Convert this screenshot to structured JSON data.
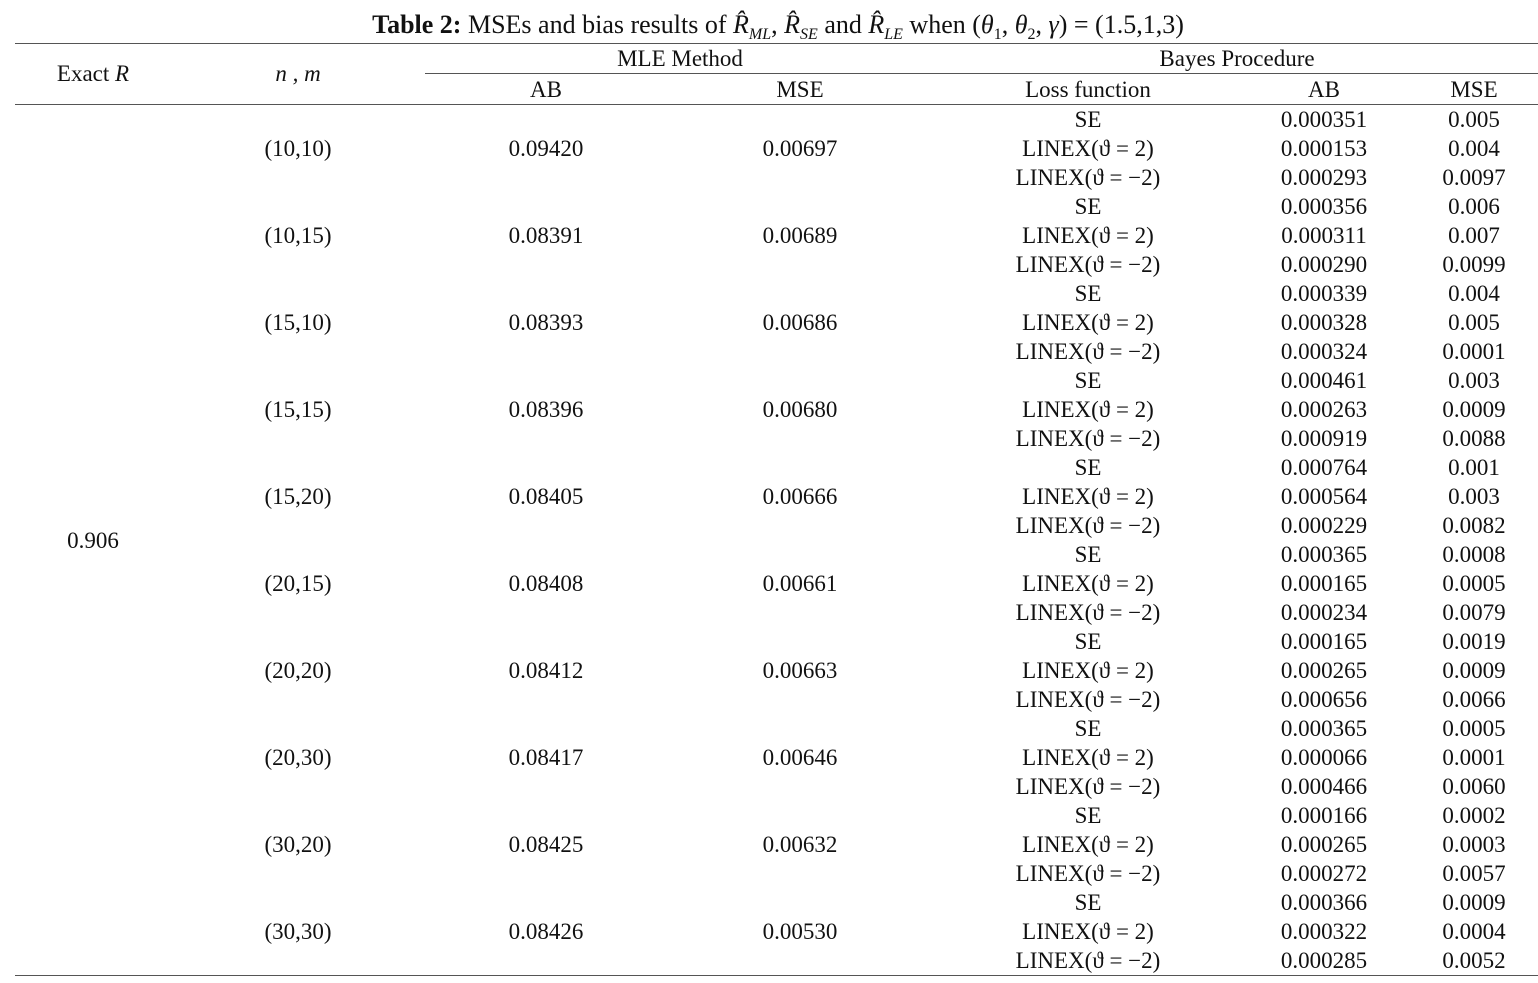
{
  "title": {
    "label": "Table 2:",
    "parts": [
      "MSEs and bias results of ",
      "R̂",
      "ML",
      ", ",
      "R̂",
      "SE",
      " and ",
      "R̂",
      "LE",
      " when (",
      "θ",
      "1",
      ", ",
      "θ",
      "2",
      ", ",
      "γ",
      ") = (1.5,1,3)"
    ]
  },
  "header": {
    "exact_r": [
      "Exact ",
      "R"
    ],
    "n_m": "n , m",
    "mle_method": "MLE Method",
    "bayes_procedure": "Bayes Procedure",
    "mle_ab": "AB",
    "mle_mse": "MSE",
    "loss_function": "Loss function",
    "bayes_ab": "AB",
    "bayes_mse": "MSE"
  },
  "table": {
    "exact_r": "0.906",
    "rows": [
      {
        "n_m": "(10,10)",
        "ab": "0.09420",
        "mse": "0.00697",
        "bayes": [
          [
            "SE",
            "0.000351",
            "0.005"
          ],
          [
            "LINEX(ϑ = 2)",
            "0.000153",
            "0.004"
          ],
          [
            "LINEX(ϑ = −2)",
            "0.000293",
            "0.0097"
          ]
        ]
      },
      {
        "n_m": "(10,15)",
        "ab": "0.08391",
        "mse": "0.00689",
        "bayes": [
          [
            "SE",
            "0.000356",
            "0.006"
          ],
          [
            "LINEX(ϑ = 2)",
            "0.000311",
            "0.007"
          ],
          [
            "LINEX(ϑ = −2)",
            "0.000290",
            "0.0099"
          ]
        ]
      },
      {
        "n_m": "(15,10)",
        "ab": "0.08393",
        "mse": "0.00686",
        "bayes": [
          [
            "SE",
            "0.000339",
            "0.004"
          ],
          [
            "LINEX(ϑ = 2)",
            "0.000328",
            "0.005"
          ],
          [
            "LINEX(ϑ = −2)",
            "0.000324",
            "0.0001"
          ]
        ]
      },
      {
        "n_m": "(15,15)",
        "ab": "0.08396",
        "mse": "0.00680",
        "bayes": [
          [
            "SE",
            "0.000461",
            "0.003"
          ],
          [
            "LINEX(ϑ = 2)",
            "0.000263",
            "0.0009"
          ],
          [
            "LINEX(ϑ = −2)",
            "0.000919",
            "0.0088"
          ]
        ]
      },
      {
        "n_m": "(15,20)",
        "ab": "0.08405",
        "mse": "0.00666",
        "bayes": [
          [
            "SE",
            "0.000764",
            "0.001"
          ],
          [
            "LINEX(ϑ = 2)",
            "0.000564",
            "0.003"
          ],
          [
            "LINEX(ϑ = −2)",
            "0.000229",
            "0.0082"
          ]
        ]
      },
      {
        "n_m": "(20,15)",
        "ab": "0.08408",
        "mse": "0.00661",
        "bayes": [
          [
            "SE",
            "0.000365",
            "0.0008"
          ],
          [
            "LINEX(ϑ = 2)",
            "0.000165",
            "0.0005"
          ],
          [
            "LINEX(ϑ = −2)",
            "0.000234",
            "0.0079"
          ]
        ]
      },
      {
        "n_m": "(20,20)",
        "ab": "0.08412",
        "mse": "0.00663",
        "bayes": [
          [
            "SE",
            "0.000165",
            "0.0019"
          ],
          [
            "LINEX(ϑ = 2)",
            "0.000265",
            "0.0009"
          ],
          [
            "LINEX(ϑ = −2)",
            "0.000656",
            "0.0066"
          ]
        ]
      },
      {
        "n_m": "(20,30)",
        "ab": "0.08417",
        "mse": "0.00646",
        "bayes": [
          [
            "SE",
            "0.000365",
            "0.0005"
          ],
          [
            "LINEX(ϑ = 2)",
            "0.000066",
            "0.0001"
          ],
          [
            "LINEX(ϑ = −2)",
            "0.000466",
            "0.0060"
          ]
        ]
      },
      {
        "n_m": "(30,20)",
        "ab": "0.08425",
        "mse": "0.00632",
        "bayes": [
          [
            "SE",
            "0.000166",
            "0.0002"
          ],
          [
            "LINEX(ϑ = 2)",
            "0.000265",
            "0.0003"
          ],
          [
            "LINEX(ϑ = −2)",
            "0.000272",
            "0.0057"
          ]
        ]
      },
      {
        "n_m": "(30,30)",
        "ab": "0.08426",
        "mse": "0.00530",
        "bayes": [
          [
            "SE",
            "0.000366",
            "0.0009"
          ],
          [
            "LINEX(ϑ = 2)",
            "0.000322",
            "0.0004"
          ],
          [
            "LINEX(ϑ = −2)",
            "0.000285",
            "0.0052"
          ]
        ]
      }
    ]
  }
}
